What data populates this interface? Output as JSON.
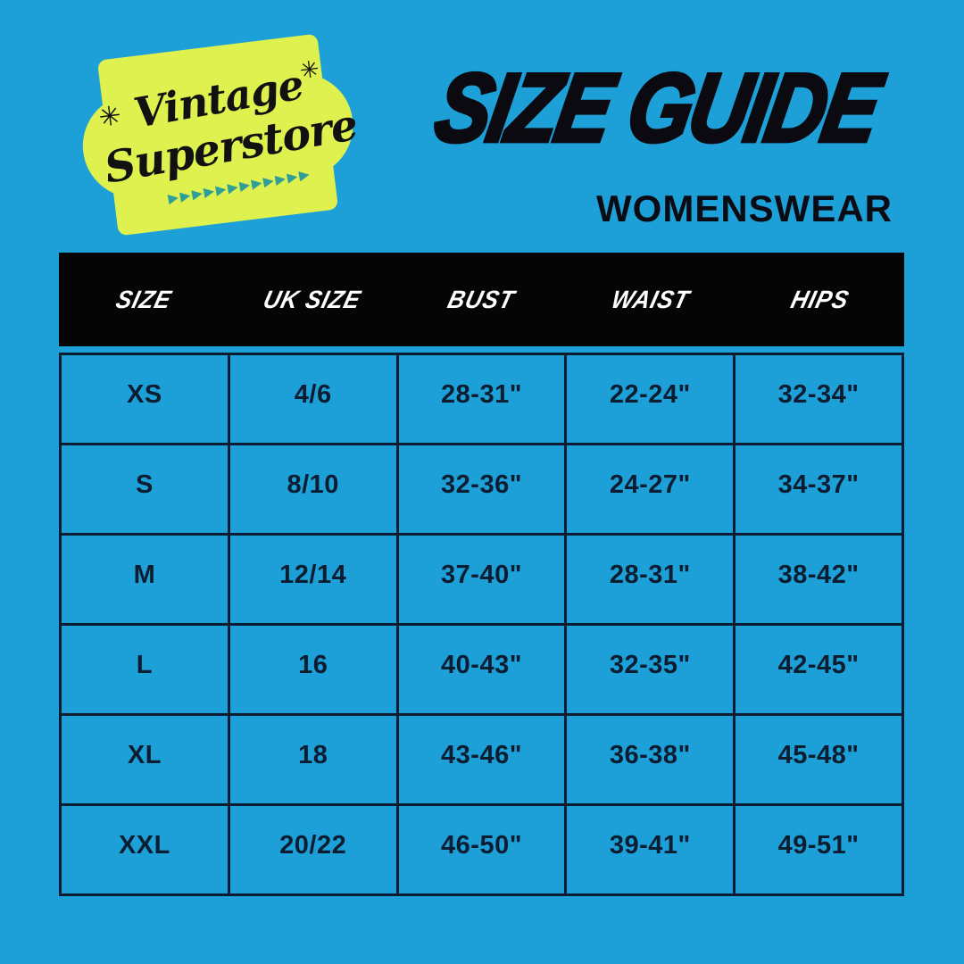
{
  "page": {
    "background_color": "#1CA0D7",
    "navy_color": "#0D1D31"
  },
  "logo": {
    "line1": "Vintage",
    "line2": "Superstore",
    "sparkle": "✳",
    "arrows": "▶▶▶▶▶▶▶▶▶▶▶▶",
    "badge_color": "#DEF14E",
    "arrow_color": "#2F9E97",
    "text_color": "#111111"
  },
  "header": {
    "title": "SIZE GUIDE",
    "subtitle": "WOMENSWEAR"
  },
  "table": {
    "columns": [
      "SIZE",
      "UK SIZE",
      "BUST",
      "WAIST",
      "HIPS"
    ],
    "rows": [
      [
        "XS",
        "4/6",
        "28-31\"",
        "22-24\"",
        "32-34\""
      ],
      [
        "S",
        "8/10",
        "32-36\"",
        "24-27\"",
        "34-37\""
      ],
      [
        "M",
        "12/14",
        "37-40\"",
        "28-31\"",
        "38-42\""
      ],
      [
        "L",
        "16",
        "40-43\"",
        "32-35\"",
        "42-45\""
      ],
      [
        "XL",
        "18",
        "43-46\"",
        "36-38\"",
        "45-48\""
      ],
      [
        "XXL",
        "20/22",
        "46-50\"",
        "39-41\"",
        "49-51\""
      ]
    ],
    "header_bg": "#050506",
    "header_text_color": "#FFFFFF",
    "border_color": "#0D1D31",
    "cell_bg": "#1CA0D7"
  }
}
